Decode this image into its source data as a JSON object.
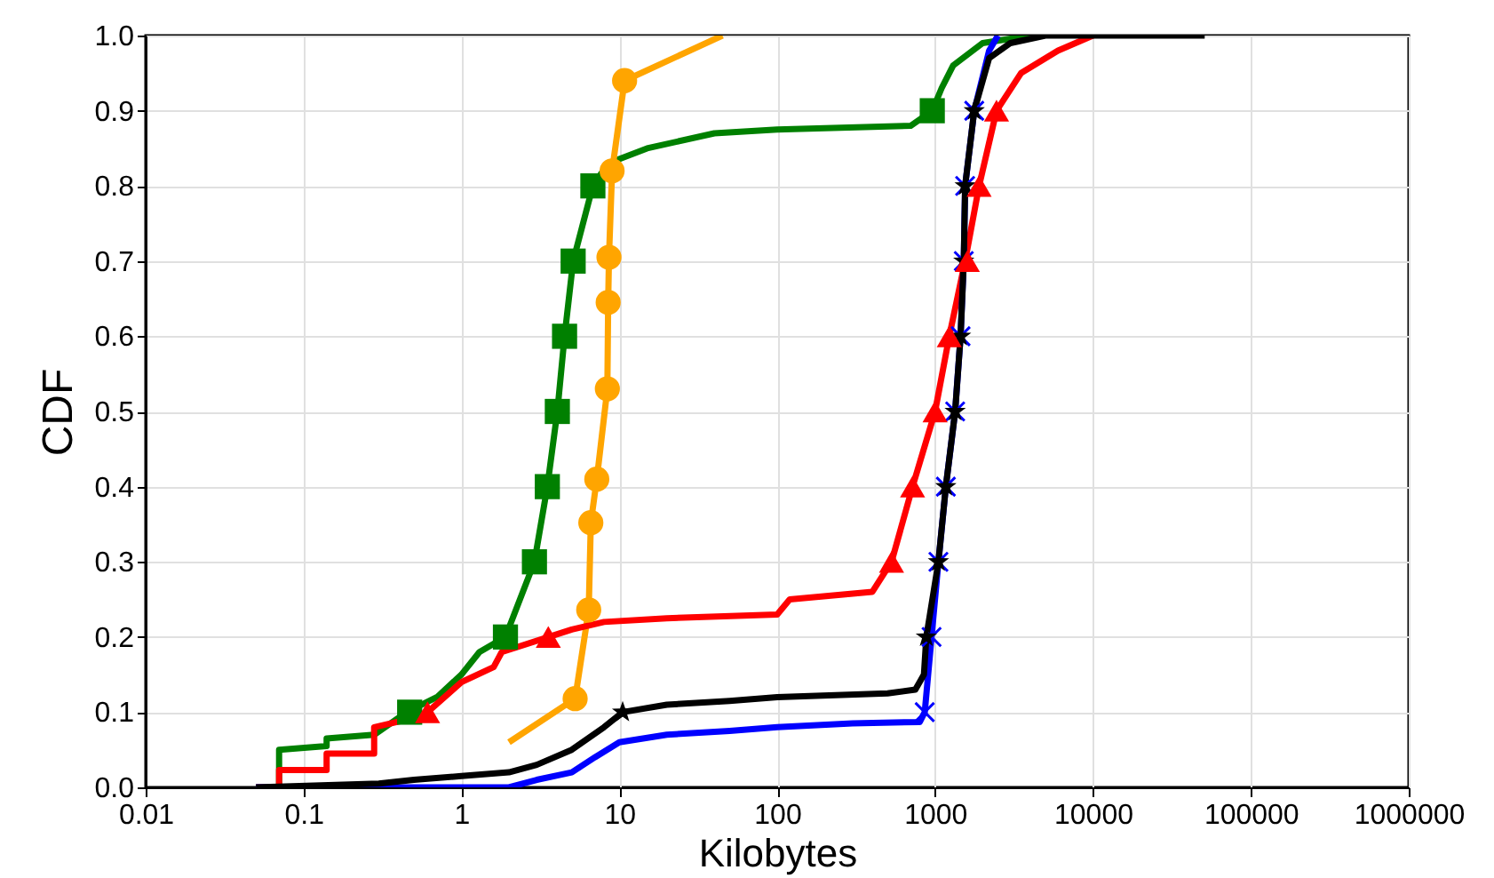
{
  "chart_data": {
    "type": "line",
    "xlabel": "Kilobytes",
    "ylabel": "CDF",
    "log": "x",
    "grid": true,
    "xlim": [
      0.01,
      1000000
    ],
    "ylim": [
      0,
      1
    ],
    "xticks": [
      0.01,
      0.1,
      1,
      10,
      100,
      1000,
      10000,
      100000,
      1000000
    ],
    "yticks": [
      {
        "value": 0,
        "label": "0.0"
      },
      {
        "value": 0.1,
        "label": "0.1"
      },
      {
        "value": 0.2,
        "label": "0.2"
      },
      {
        "value": 0.3,
        "label": "0.3"
      },
      {
        "value": 0.4,
        "label": "0.4"
      },
      {
        "value": 0.5,
        "label": "0.5"
      },
      {
        "value": 0.6,
        "label": "0.6"
      },
      {
        "value": 0.7,
        "label": "0.7"
      },
      {
        "value": 0.8,
        "label": "0.8"
      },
      {
        "value": 0.9,
        "label": "0.9"
      },
      {
        "value": 1,
        "label": "1.0"
      }
    ],
    "series": [
      {
        "type": "line",
        "color": "#008000",
        "x": [
          0.07,
          0.07,
          0.14,
          0.14,
          0.28,
          0.45,
          0.7,
          1.0,
          1.3,
          1.9,
          2.9,
          3.5,
          4.05,
          4.5,
          5.1,
          6.8,
          8.5,
          15,
          40,
          100,
          700,
          960,
          1100,
          1300,
          2000,
          4000
        ],
        "values": [
          0,
          0.05,
          0.055,
          0.065,
          0.07,
          0.1,
          0.12,
          0.15,
          0.18,
          0.2,
          0.3,
          0.4,
          0.5,
          0.6,
          0.7,
          0.8,
          0.83,
          0.85,
          0.87,
          0.875,
          0.88,
          0.9,
          0.93,
          0.96,
          0.99,
          1.0
        ]
      },
      {
        "type": "line",
        "color": "#ffa500",
        "x": [
          2.0,
          5.25,
          6.4,
          6.6,
          7.2,
          8.4,
          8.5,
          8.6,
          9,
          10.8,
          45
        ],
        "values": [
          0.06,
          0.118,
          0.236,
          0.352,
          0.41,
          0.53,
          0.645,
          0.705,
          0.82,
          0.94,
          1.0
        ]
      },
      {
        "type": "line",
        "color": "#ff0000",
        "x": [
          0.05,
          0.07,
          0.07,
          0.14,
          0.14,
          0.28,
          0.28,
          0.45,
          0.61,
          1.0,
          1.6,
          1.8,
          3.55,
          5,
          8,
          20,
          100,
          120,
          400,
          530,
          720,
          1000,
          1230,
          1550,
          1900,
          2450,
          3500,
          6000,
          10000
        ],
        "values": [
          0,
          0,
          0.023,
          0.023,
          0.045,
          0.045,
          0.08,
          0.09,
          0.1,
          0.14,
          0.16,
          0.18,
          0.2,
          0.21,
          0.22,
          0.225,
          0.23,
          0.25,
          0.26,
          0.3,
          0.4,
          0.5,
          0.6,
          0.7,
          0.8,
          0.9,
          0.95,
          0.98,
          1.0
        ]
      },
      {
        "type": "line",
        "color": "#0000ff",
        "x": [
          0.05,
          2,
          3,
          5,
          7,
          10,
          20,
          50,
          100,
          300,
          800,
          860,
          950,
          1050,
          1170,
          1340,
          1450,
          1520,
          1550,
          1770,
          2200,
          2500
        ],
        "values": [
          0,
          0,
          0.01,
          0.02,
          0.04,
          0.06,
          0.07,
          0.075,
          0.08,
          0.085,
          0.087,
          0.1,
          0.2,
          0.3,
          0.4,
          0.5,
          0.6,
          0.7,
          0.8,
          0.9,
          0.98,
          1.0
        ]
      },
      {
        "type": "line",
        "color": "#000000",
        "x": [
          0.05,
          0.3,
          0.5,
          1,
          2,
          3,
          5,
          8,
          10.5,
          20,
          50,
          100,
          500,
          750,
          850,
          880,
          1050,
          1170,
          1340,
          1450,
          1520,
          1550,
          1770,
          2200,
          3000,
          5000,
          51000
        ],
        "values": [
          0,
          0.005,
          0.01,
          0.015,
          0.02,
          0.03,
          0.05,
          0.08,
          0.1,
          0.11,
          0.115,
          0.12,
          0.125,
          0.13,
          0.15,
          0.2,
          0.3,
          0.4,
          0.5,
          0.6,
          0.7,
          0.8,
          0.9,
          0.97,
          0.99,
          1.0,
          1.0
        ]
      },
      {
        "type": "scatter",
        "color": "#008000",
        "marker": "square",
        "x": [
          0.47,
          1.9,
          2.9,
          3.5,
          4.05,
          4.5,
          5.1,
          6.8,
          960
        ],
        "values": [
          0.1,
          0.2,
          0.3,
          0.4,
          0.5,
          0.6,
          0.7,
          0.8,
          0.9
        ]
      },
      {
        "type": "scatter",
        "color": "#ffa500",
        "marker": "circle",
        "x": [
          5.25,
          6.4,
          6.6,
          7.2,
          8.4,
          8.5,
          8.6,
          9,
          10.8
        ],
        "values": [
          0.118,
          0.236,
          0.352,
          0.41,
          0.53,
          0.645,
          0.705,
          0.82,
          0.94
        ]
      },
      {
        "type": "scatter",
        "color": "#0000ff",
        "marker": "cross",
        "x": [
          860,
          950,
          1050,
          1170,
          1340,
          1450,
          1520,
          1550,
          1770
        ],
        "values": [
          0.1,
          0.2,
          0.3,
          0.4,
          0.5,
          0.6,
          0.7,
          0.8,
          0.9
        ]
      },
      {
        "type": "scatter",
        "color": "#000000",
        "marker": "star",
        "x": [
          10.5,
          880,
          1050,
          1170,
          1340,
          1450,
          1520,
          1550,
          1770
        ],
        "values": [
          0.1,
          0.2,
          0.3,
          0.4,
          0.5,
          0.6,
          0.7,
          0.8,
          0.9
        ]
      },
      {
        "type": "scatter",
        "color": "#ff0000",
        "marker": "triangle",
        "x": [
          0.61,
          3.55,
          530,
          720,
          1000,
          1230,
          1600,
          1900,
          2450
        ],
        "values": [
          0.1,
          0.2,
          0.3,
          0.4,
          0.5,
          0.6,
          0.7,
          0.8,
          0.9
        ]
      }
    ]
  }
}
